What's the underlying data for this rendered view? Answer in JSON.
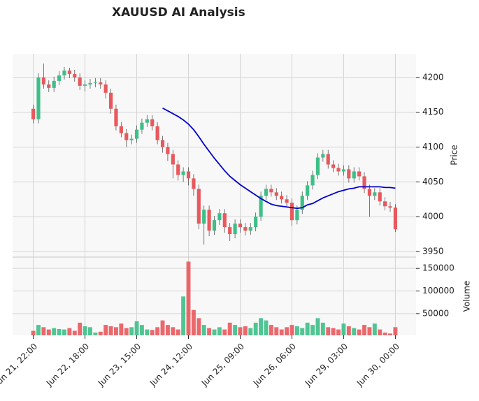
{
  "chart_data": {
    "type": "candlestick",
    "title": "XAUUSD AI Analysis",
    "x": [
      0,
      2,
      4,
      6,
      8,
      10,
      12,
      14,
      16,
      18,
      20,
      22,
      24,
      26,
      28,
      30,
      32,
      34,
      36,
      38,
      40,
      42,
      44,
      46,
      48,
      50,
      52,
      54,
      56,
      58,
      60,
      62,
      64,
      66,
      68,
      70,
      72,
      74,
      76,
      78,
      80,
      82,
      84,
      86,
      88,
      90,
      92,
      94,
      96,
      98,
      100,
      102,
      104,
      106,
      108,
      110,
      112,
      114,
      116,
      118,
      120,
      122,
      124,
      126,
      128,
      130,
      132,
      134,
      136,
      138,
      140
    ],
    "open": [
      4155,
      4140,
      4200,
      4190,
      4185,
      4195,
      4203,
      4210,
      4205,
      4200,
      4188,
      4190,
      4192,
      4193,
      4190,
      4178,
      4155,
      4130,
      4120,
      4110,
      4112,
      4125,
      4135,
      4140,
      4130,
      4110,
      4100,
      4090,
      4075,
      4060,
      4065,
      4055,
      4040,
      3990,
      4010,
      3980,
      3995,
      4005,
      3985,
      3975,
      3990,
      3985,
      3980,
      3985,
      4000,
      4030,
      4040,
      4035,
      4030,
      4025,
      4020,
      3995,
      4010,
      4030,
      4045,
      4060,
      4085,
      4090,
      4075,
      4070,
      4065,
      4068,
      4055,
      4065,
      4058,
      4040,
      4030,
      4035,
      4022,
      4015,
      4013
    ],
    "high": [
      4161,
      4206,
      4220,
      4196,
      4201,
      4209,
      4215,
      4214,
      4211,
      4206,
      4196,
      4198,
      4199,
      4199,
      4196,
      4184,
      4161,
      4136,
      4126,
      4118,
      4131,
      4141,
      4146,
      4146,
      4136,
      4116,
      4106,
      4096,
      4081,
      4071,
      4071,
      4061,
      4046,
      4016,
      4016,
      4001,
      4011,
      4011,
      3991,
      3996,
      3996,
      3991,
      3991,
      4006,
      4036,
      4046,
      4046,
      4041,
      4036,
      4031,
      4026,
      4016,
      4036,
      4051,
      4066,
      4091,
      4096,
      4096,
      4081,
      4076,
      4074,
      4074,
      4071,
      4071,
      4064,
      4046,
      4041,
      4041,
      4028,
      4021,
      4018
    ],
    "low": [
      4134,
      4134,
      4184,
      4179,
      4179,
      4189,
      4197,
      4199,
      4194,
      4182,
      4180,
      4184,
      4186,
      4184,
      4170,
      4148,
      4124,
      4114,
      4100,
      4104,
      4106,
      4119,
      4129,
      4124,
      4104,
      4092,
      4080,
      4055,
      4052,
      4050,
      4045,
      4030,
      3982,
      3960,
      3972,
      3974,
      3988,
      3977,
      3965,
      3969,
      3977,
      3973,
      3974,
      3979,
      3994,
      4024,
      4029,
      4024,
      4019,
      4014,
      3987,
      3989,
      4004,
      4024,
      4039,
      4054,
      4079,
      4069,
      4064,
      4059,
      4059,
      4049,
      4049,
      4052,
      4034,
      4000,
      4024,
      4016,
      4009,
      4007,
      3978
    ],
    "close": [
      4140,
      4200,
      4190,
      4185,
      4195,
      4203,
      4210,
      4205,
      4200,
      4188,
      4190,
      4192,
      4193,
      4190,
      4178,
      4155,
      4130,
      4120,
      4110,
      4112,
      4125,
      4135,
      4140,
      4130,
      4110,
      4100,
      4090,
      4075,
      4060,
      4065,
      4055,
      4040,
      3990,
      4010,
      3980,
      3995,
      4005,
      3985,
      3975,
      3990,
      3985,
      3980,
      3985,
      4000,
      4030,
      4040,
      4035,
      4030,
      4025,
      4020,
      3995,
      4010,
      4030,
      4045,
      4060,
      4085,
      4090,
      4075,
      4070,
      4065,
      4068,
      4055,
      4065,
      4058,
      4040,
      4030,
      4035,
      4022,
      4015,
      4013,
      3982
    ],
    "volume": [
      12000,
      25000,
      20000,
      15000,
      18000,
      16000,
      15000,
      18000,
      12000,
      30000,
      22000,
      20000,
      8000,
      10000,
      25000,
      22000,
      20000,
      28000,
      18000,
      20000,
      33000,
      25000,
      15000,
      14000,
      20000,
      35000,
      25000,
      20000,
      15000,
      88000,
      165000,
      58000,
      40000,
      25000,
      18000,
      15000,
      20000,
      15000,
      30000,
      25000,
      20000,
      22000,
      18000,
      30000,
      40000,
      35000,
      25000,
      20000,
      15000,
      20000,
      25000,
      22000,
      18000,
      30000,
      25000,
      40000,
      30000,
      20000,
      18000,
      15000,
      28000,
      22000,
      18000,
      15000,
      25000,
      20000,
      28000,
      15000,
      8000,
      6000,
      20000
    ],
    "moving_average": {
      "color": "#0000cc",
      "values": [
        null,
        null,
        null,
        null,
        null,
        null,
        null,
        null,
        null,
        null,
        null,
        null,
        null,
        null,
        null,
        null,
        null,
        null,
        null,
        null,
        null,
        null,
        null,
        null,
        null,
        4156,
        4152,
        4148,
        4144,
        4139,
        4133,
        4125,
        4115,
        4104,
        4094,
        4084,
        4075,
        4066,
        4058,
        4052,
        4046,
        4041,
        4036,
        4031,
        4026,
        4022,
        4018,
        4016,
        4015,
        4014,
        4013,
        4012,
        4013,
        4017,
        4019,
        4023,
        4027,
        4030,
        4033,
        4036,
        4038,
        4040,
        4041,
        4043,
        4043,
        4043,
        4043,
        4043,
        4042,
        4042,
        4041
      ]
    },
    "up_color": "#3dbf87",
    "down_color": "#e8585c",
    "xlim": [
      -8,
      148
    ],
    "xticks": [
      {
        "value": 0,
        "label": "Jun 21, 22:00"
      },
      {
        "value": 20,
        "label": "Jun 22, 18:00"
      },
      {
        "value": 40,
        "label": "Jun 23, 15:00"
      },
      {
        "value": 60,
        "label": "Jun 24, 12:00"
      },
      {
        "value": 80,
        "label": "Jun 25, 09:00"
      },
      {
        "value": 100,
        "label": "Jun 26, 06:00"
      },
      {
        "value": 120,
        "label": "Jun 29, 03:00"
      },
      {
        "value": 140,
        "label": "Jun 30, 00:00"
      }
    ],
    "ylabel": "Price",
    "ylim": [
      3942,
      4234
    ],
    "yticks": [
      3950,
      4000,
      4050,
      4100,
      4150,
      4200
    ],
    "volume_label": "Volume",
    "volume_ylim": [
      2000,
      175000
    ],
    "volume_yticks": [
      50000,
      100000,
      150000
    ],
    "grid": true
  }
}
